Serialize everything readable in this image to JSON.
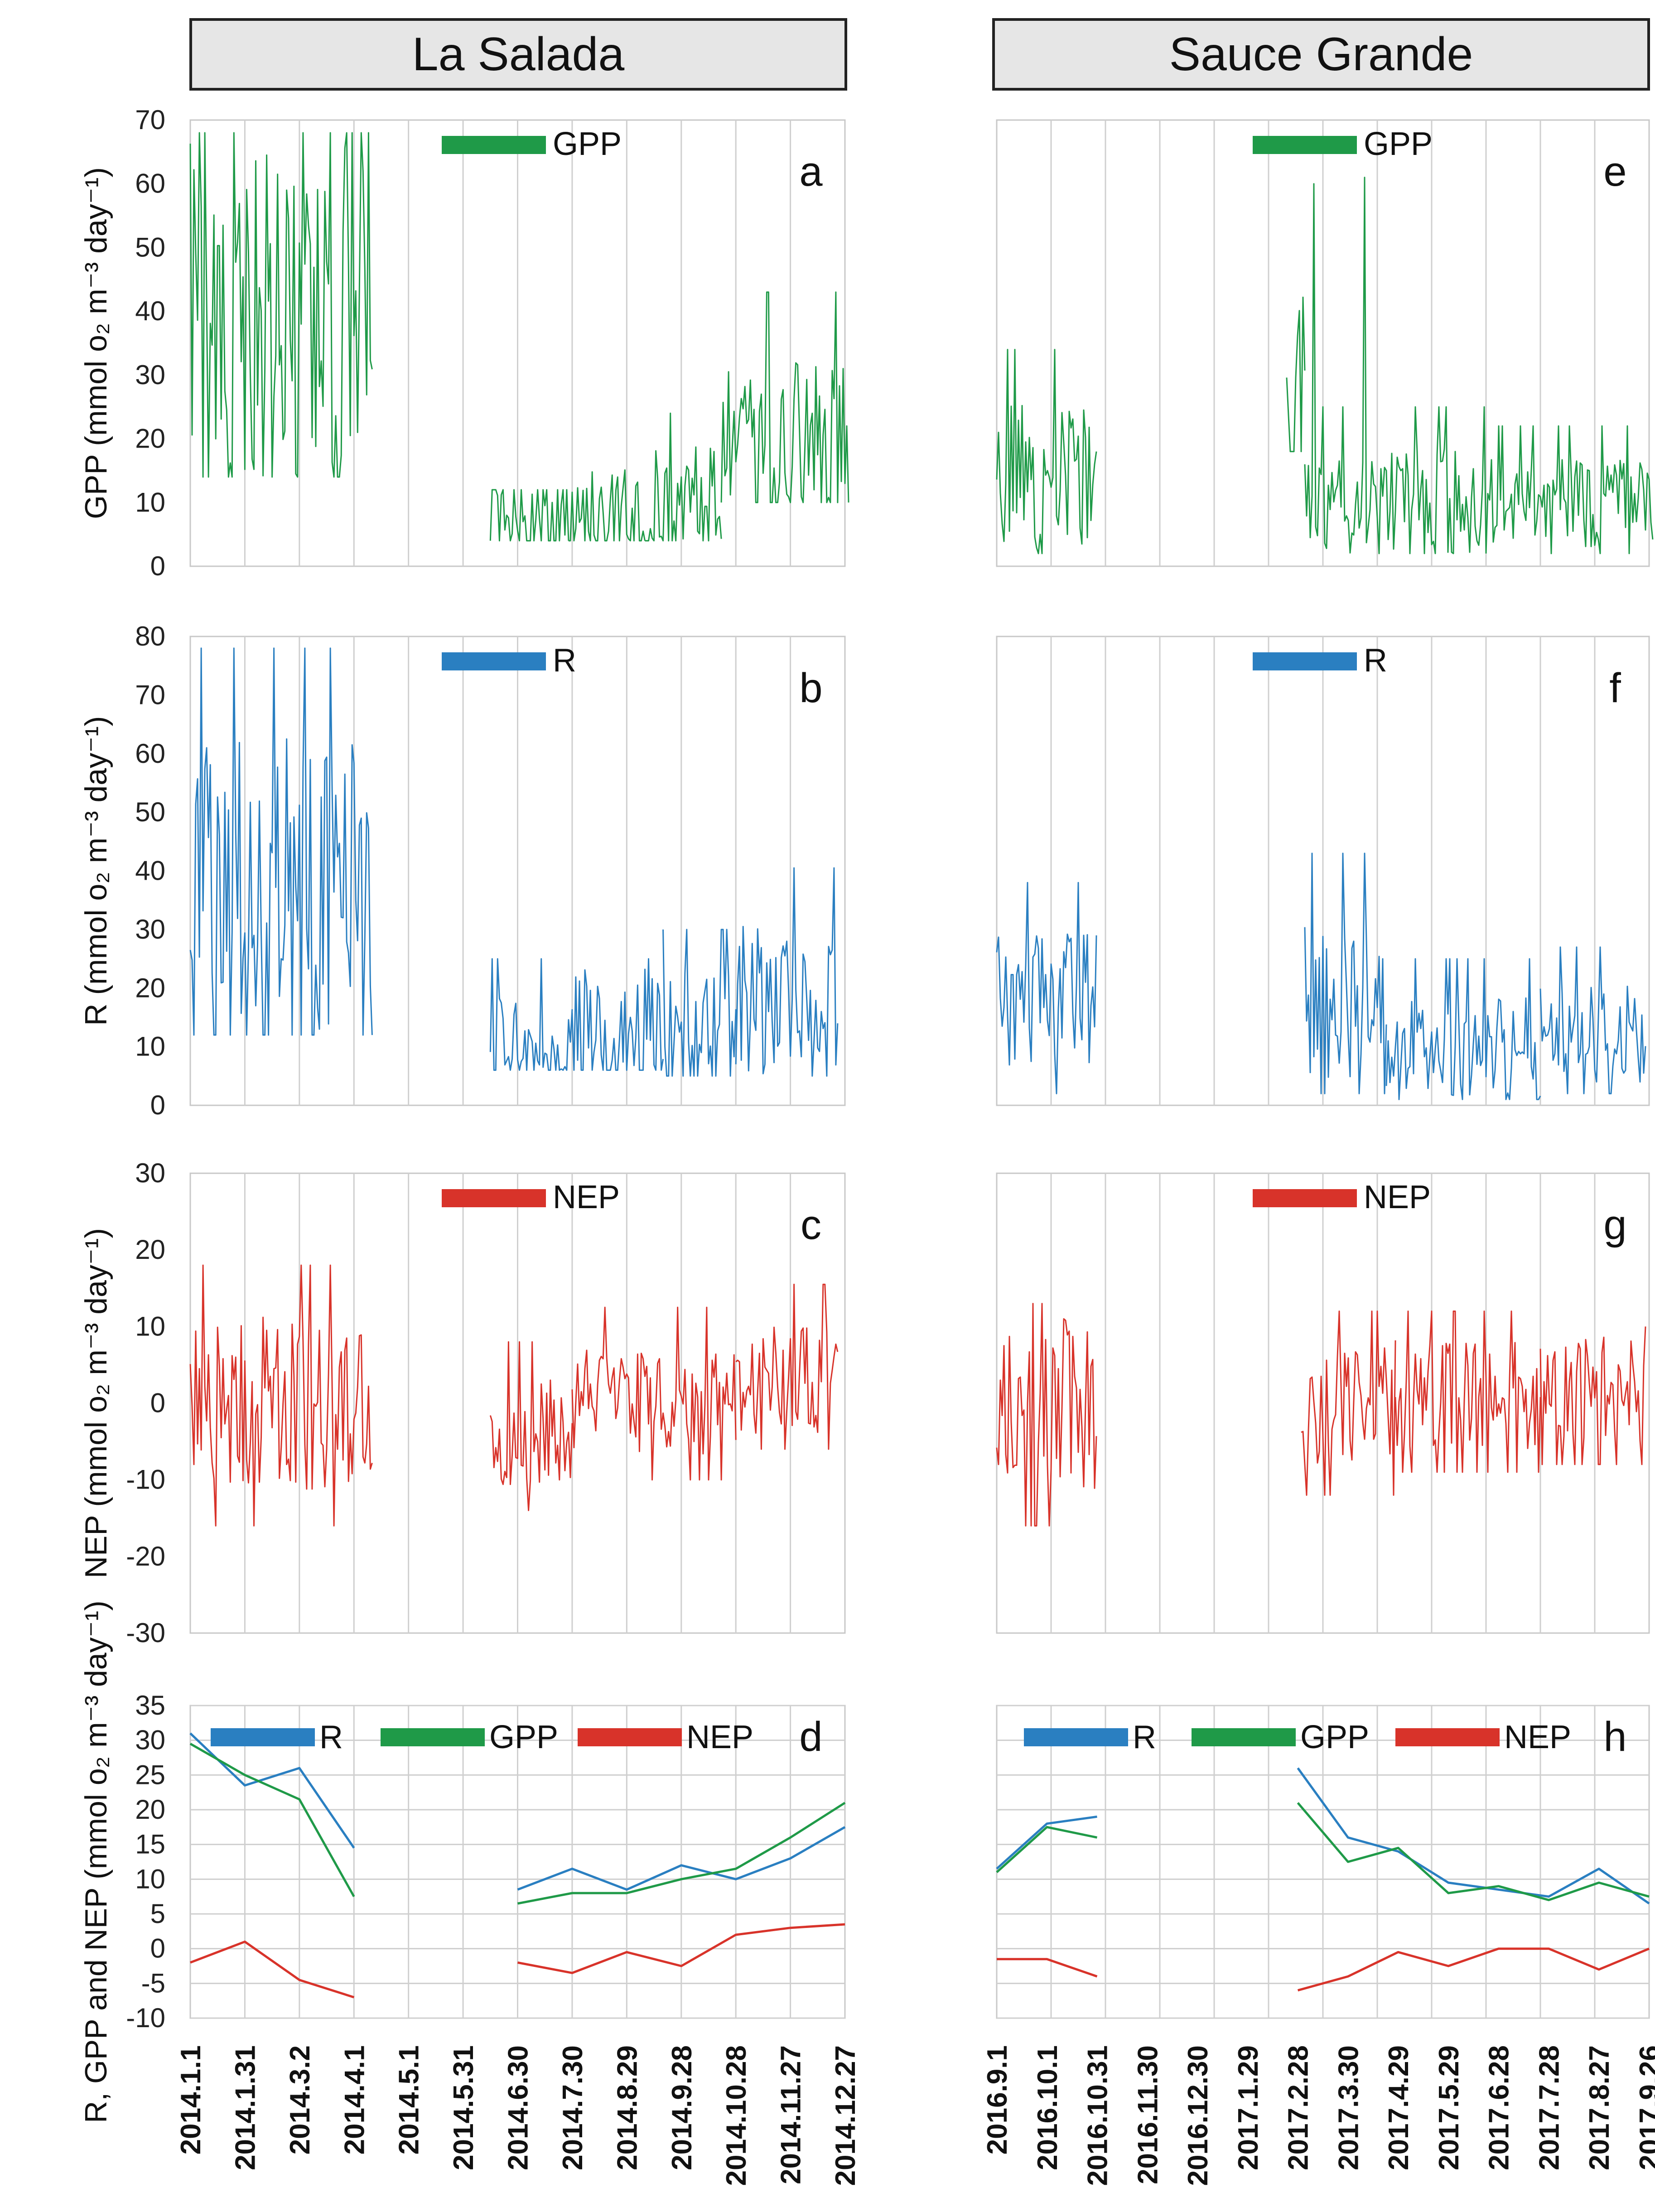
{
  "sites": {
    "left": "La Salada",
    "right": "Sauce Grande"
  },
  "colors": {
    "gpp": "#1f9a48",
    "r": "#2a7fc1",
    "nep": "#d8332a",
    "grid": "#c8c8c8",
    "axis": "#555555"
  },
  "chart_data": [
    {
      "id": "a",
      "panel_letter": "a",
      "type": "line",
      "site": "La Salada",
      "ylabel": "GPP (mmol o₂ m⁻³ day⁻¹)",
      "ylim": [
        0,
        70
      ],
      "yticks": [
        0,
        10,
        20,
        30,
        40,
        50,
        60,
        70
      ],
      "legend": [
        "GPP"
      ],
      "series": [
        {
          "name": "GPP",
          "color": "#1f9a48",
          "x": [],
          "values": []
        }
      ],
      "note_series_is_daily": true
    },
    {
      "id": "b",
      "panel_letter": "b",
      "type": "line",
      "site": "La Salada",
      "ylabel": "R (mmol o₂ m⁻³ day⁻¹)",
      "ylim": [
        0,
        80
      ],
      "yticks": [
        0,
        10,
        20,
        30,
        40,
        50,
        60,
        70,
        80
      ],
      "legend": [
        "R"
      ],
      "series": [
        {
          "name": "R",
          "color": "#2a7fc1",
          "x": [],
          "values": []
        }
      ]
    },
    {
      "id": "c",
      "panel_letter": "c",
      "type": "line",
      "site": "La Salada",
      "ylabel": "NEP (mmol o₂ m⁻³ day⁻¹)",
      "ylim": [
        -30,
        30
      ],
      "yticks": [
        -30,
        -20,
        -10,
        0,
        10,
        20,
        30
      ],
      "legend": [
        "NEP"
      ],
      "series": [
        {
          "name": "NEP",
          "color": "#d8332a",
          "x": [],
          "values": []
        }
      ]
    },
    {
      "id": "d",
      "panel_letter": "d",
      "type": "line",
      "site": "La Salada",
      "ylabel": "R, GPP and NEP (mmol o₂ m⁻³ day⁻¹)",
      "ylim": [
        -10,
        35
      ],
      "yticks": [
        -10,
        -5,
        0,
        5,
        10,
        15,
        20,
        25,
        30,
        35
      ],
      "legend": [
        "R",
        "GPP",
        "NEP"
      ],
      "categories": [
        "2014.1.1",
        "2014.1.31",
        "2014.3.2",
        "2014.4.1",
        "2014.5.1",
        "2014.5.31",
        "2014.6.30",
        "2014.7.30",
        "2014.8.29",
        "2014.9.28",
        "2014.10.28",
        "2014.11.27",
        "2014.12.27"
      ],
      "series": [
        {
          "name": "R",
          "color": "#2a7fc1",
          "values": [
            31,
            23.5,
            26,
            14.5,
            null,
            null,
            8.5,
            11.5,
            8.5,
            12,
            10,
            13,
            17.5
          ]
        },
        {
          "name": "GPP",
          "color": "#1f9a48",
          "values": [
            29.5,
            25,
            21.5,
            7.5,
            null,
            null,
            6.5,
            8,
            8,
            10,
            11.5,
            16,
            21
          ]
        },
        {
          "name": "NEP",
          "color": "#d8332a",
          "values": [
            -2,
            1,
            -4.5,
            -7,
            null,
            null,
            -2,
            -3.5,
            -0.5,
            -2.5,
            2,
            3,
            3.5
          ]
        }
      ]
    },
    {
      "id": "e",
      "panel_letter": "e",
      "type": "line",
      "site": "Sauce Grande",
      "ylim": [
        0,
        70
      ],
      "legend": [
        "GPP"
      ],
      "series": [
        {
          "name": "GPP",
          "color": "#1f9a48",
          "x": [],
          "values": []
        }
      ]
    },
    {
      "id": "f",
      "panel_letter": "f",
      "type": "line",
      "site": "Sauce Grande",
      "ylim": [
        0,
        80
      ],
      "legend": [
        "R"
      ],
      "series": [
        {
          "name": "R",
          "color": "#2a7fc1",
          "x": [],
          "values": []
        }
      ]
    },
    {
      "id": "g",
      "panel_letter": "g",
      "type": "line",
      "site": "Sauce Grande",
      "ylim": [
        -30,
        30
      ],
      "legend": [
        "NEP"
      ],
      "series": [
        {
          "name": "NEP",
          "color": "#d8332a",
          "x": [],
          "values": []
        }
      ]
    },
    {
      "id": "h",
      "panel_letter": "h",
      "type": "line",
      "site": "Sauce Grande",
      "ylim": [
        -10,
        35
      ],
      "legend": [
        "R",
        "GPP",
        "NEP"
      ],
      "categories": [
        "2016.9.1",
        "2016.10.1",
        "2016.10.31",
        "2016.11.30",
        "2016.12.30",
        "2017.1.29",
        "2017.2.28",
        "2017.3.30",
        "2017.4.29",
        "2017.5.29",
        "2017.6.28",
        "2017.7.28",
        "2017.8.27",
        "2017.9.26"
      ],
      "series": [
        {
          "name": "R",
          "color": "#2a7fc1",
          "values": [
            11.5,
            18,
            19,
            null,
            null,
            null,
            26,
            16,
            14,
            9.5,
            8.5,
            7.5,
            11.5,
            6.5
          ]
        },
        {
          "name": "GPP",
          "color": "#1f9a48",
          "values": [
            11,
            17.5,
            16,
            null,
            null,
            null,
            21,
            12.5,
            14.5,
            8,
            9,
            7,
            9.5,
            7.5
          ]
        },
        {
          "name": "NEP",
          "color": "#d8332a",
          "values": [
            -1.5,
            -1.5,
            -4,
            null,
            null,
            null,
            -6,
            -4,
            -0.5,
            -2.5,
            0,
            0,
            -3,
            0
          ]
        }
      ]
    }
  ]
}
